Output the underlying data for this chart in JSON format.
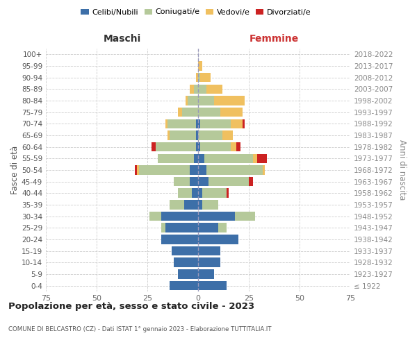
{
  "age_groups": [
    "100+",
    "95-99",
    "90-94",
    "85-89",
    "80-84",
    "75-79",
    "70-74",
    "65-69",
    "60-64",
    "55-59",
    "50-54",
    "45-49",
    "40-44",
    "35-39",
    "30-34",
    "25-29",
    "20-24",
    "15-19",
    "10-14",
    "5-9",
    "0-4"
  ],
  "birth_years": [
    "≤ 1922",
    "1923-1927",
    "1928-1932",
    "1933-1937",
    "1938-1942",
    "1943-1947",
    "1948-1952",
    "1953-1957",
    "1958-1962",
    "1963-1967",
    "1968-1972",
    "1973-1977",
    "1978-1982",
    "1983-1987",
    "1988-1992",
    "1993-1997",
    "1998-2002",
    "2003-2007",
    "2008-2012",
    "2013-2017",
    "2018-2022"
  ],
  "males": {
    "celibi": [
      0,
      0,
      0,
      0,
      0,
      0,
      1,
      1,
      1,
      2,
      4,
      4,
      3,
      7,
      18,
      16,
      18,
      13,
      12,
      10,
      14
    ],
    "coniugati": [
      0,
      0,
      0,
      2,
      5,
      8,
      14,
      13,
      20,
      18,
      25,
      8,
      7,
      7,
      6,
      2,
      0,
      0,
      0,
      0,
      0
    ],
    "vedovi": [
      0,
      0,
      1,
      2,
      1,
      2,
      1,
      1,
      0,
      0,
      1,
      0,
      0,
      0,
      0,
      0,
      0,
      0,
      0,
      0,
      0
    ],
    "divorziati": [
      0,
      0,
      0,
      0,
      0,
      0,
      0,
      0,
      2,
      0,
      1,
      0,
      0,
      0,
      0,
      0,
      0,
      0,
      0,
      0,
      0
    ]
  },
  "females": {
    "nubili": [
      0,
      0,
      0,
      0,
      0,
      0,
      1,
      0,
      1,
      3,
      4,
      5,
      2,
      2,
      18,
      10,
      20,
      11,
      11,
      8,
      14
    ],
    "coniugate": [
      0,
      0,
      1,
      4,
      8,
      11,
      15,
      12,
      15,
      24,
      28,
      20,
      12,
      8,
      10,
      4,
      0,
      0,
      0,
      0,
      0
    ],
    "vedove": [
      0,
      2,
      5,
      8,
      15,
      11,
      6,
      5,
      3,
      2,
      1,
      0,
      0,
      0,
      0,
      0,
      0,
      0,
      0,
      0,
      0
    ],
    "divorziate": [
      0,
      0,
      0,
      0,
      0,
      0,
      1,
      0,
      2,
      5,
      0,
      2,
      1,
      0,
      0,
      0,
      0,
      0,
      0,
      0,
      0
    ]
  },
  "colors": {
    "celibi": "#3d6fa8",
    "coniugati": "#b5c99a",
    "vedovi": "#f0c060",
    "divorziati": "#cc2222"
  },
  "xlim": 75,
  "title": "Popolazione per età, sesso e stato civile - 2023",
  "subtitle": "COMUNE DI BELCASTRO (CZ) - Dati ISTAT 1° gennaio 2023 - Elaborazione TUTTITALIA.IT",
  "ylabel_left": "Fasce di età",
  "ylabel_right": "Anni di nascita",
  "xlabel_left": "Maschi",
  "xlabel_right": "Femmine",
  "legend_labels": [
    "Celibi/Nubili",
    "Coniugati/e",
    "Vedovi/e",
    "Divorziati/e"
  ]
}
